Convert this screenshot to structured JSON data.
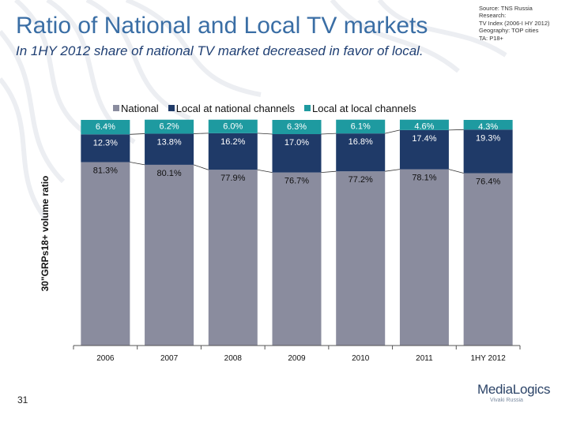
{
  "title": "Ratio of National and Local TV markets",
  "subtitle": "In 1HY 2012 share of national TV market decreased in favor of local.",
  "source": [
    "Source: TNS Russia",
    "Research:",
    "TV Index (2006-I HY 2012)",
    "Geography: TOP cities",
    "TA: P18+"
  ],
  "page_number": "31",
  "logo": {
    "name": "MediaLogics",
    "tagline": "Vivaki Russia"
  },
  "colors": {
    "national": "#8a8c9e",
    "local_national": "#1f3a68",
    "local_local": "#1e9aa0",
    "title": "#3a6ea5"
  },
  "chart_data": {
    "type": "bar",
    "stacked": true,
    "ylabel": "30\"GRPs18+ volume ratio",
    "ylim": [
      0,
      100
    ],
    "legend_position": "top",
    "categories": [
      "2006",
      "2007",
      "2008",
      "2009",
      "2010",
      "2011",
      "1HY 2012"
    ],
    "series": [
      {
        "name": "National",
        "values": [
          81.3,
          80.1,
          77.9,
          76.7,
          77.2,
          78.1,
          76.4
        ],
        "labels": [
          "81.3%",
          "80.1%",
          "77.9%",
          "76.7%",
          "77.2%",
          "78.1%",
          "76.4%"
        ]
      },
      {
        "name": "Local at national channels",
        "values": [
          12.3,
          13.8,
          16.2,
          17.0,
          16.8,
          17.4,
          19.3
        ],
        "labels": [
          "12.3%",
          "13.8%",
          "16.2%",
          "17.0%",
          "16.8%",
          "17.4%",
          "19.3%"
        ]
      },
      {
        "name": "Local at local channels",
        "values": [
          6.4,
          6.2,
          6.0,
          6.3,
          6.1,
          4.6,
          4.3
        ],
        "labels": [
          "6.4%",
          "6.2%",
          "6.0%",
          "6.3%",
          "6.1%",
          "4.6%",
          "4.3%"
        ]
      }
    ]
  }
}
